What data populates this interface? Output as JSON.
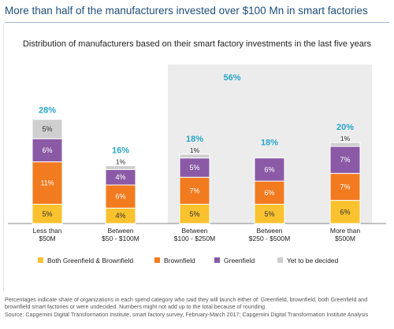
{
  "header": {
    "title": "More than half of the manufacturers invested over $100 Mn in smart factories"
  },
  "notes": {
    "line1": "Percentages indicate share of organizations in each spend category who said they will launch either of: Greenfield, brownfield, both Greenfield and brownfield smart factories or were undecided. Numbers might not add up to the total because of rounding",
    "source": "Source: Capgemini Digital Transformation Institute, smart factory survey, February-March 2017; Capgemini Digital Transformation Institute Analysis"
  },
  "chart_data": {
    "type": "bar",
    "stacked": true,
    "title": "Distribution of manufacturers based on their smart factory investments in the last five years",
    "categories": [
      [
        "Less than",
        "$50M"
      ],
      [
        "Between",
        "$50 - $100M"
      ],
      [
        "Between",
        "$100 - $250M"
      ],
      [
        "Between",
        "$250 - $500M"
      ],
      [
        "More than",
        "$500M"
      ]
    ],
    "totals": [
      "28%",
      "16%",
      "18%",
      "18%",
      "20%"
    ],
    "group_total": {
      "label": "56%",
      "categories": [
        2,
        3
      ]
    },
    "series": [
      {
        "name": "Both Greenfield & Brownfield",
        "color": "#f9c22e",
        "values": [
          5,
          4,
          5,
          5,
          6
        ]
      },
      {
        "name": "Brownfield",
        "color": "#f27b1f",
        "values": [
          11,
          6,
          7,
          6,
          7
        ]
      },
      {
        "name": "Greenfield",
        "color": "#8b5aa6",
        "values": [
          6,
          4,
          5,
          6,
          7
        ]
      },
      {
        "name": "Yet to be decided",
        "color": "#cfcfcf",
        "values": [
          5,
          1,
          1,
          0,
          1
        ]
      }
    ],
    "value_labels": [
      [
        "5%",
        "11%",
        "6%",
        "5%"
      ],
      [
        "4%",
        "6%",
        "4%",
        "1%"
      ],
      [
        "5%",
        "7%",
        "5%",
        "1%"
      ],
      [
        "5%",
        "6%",
        "6%",
        ""
      ],
      [
        "6%",
        "7%",
        "7%",
        "1%"
      ]
    ],
    "colors": {
      "total_label": "#2aa5c8",
      "highlight_band": "#ececec",
      "title": "#1f4e79"
    },
    "legend_position": "bottom",
    "grid": false
  }
}
